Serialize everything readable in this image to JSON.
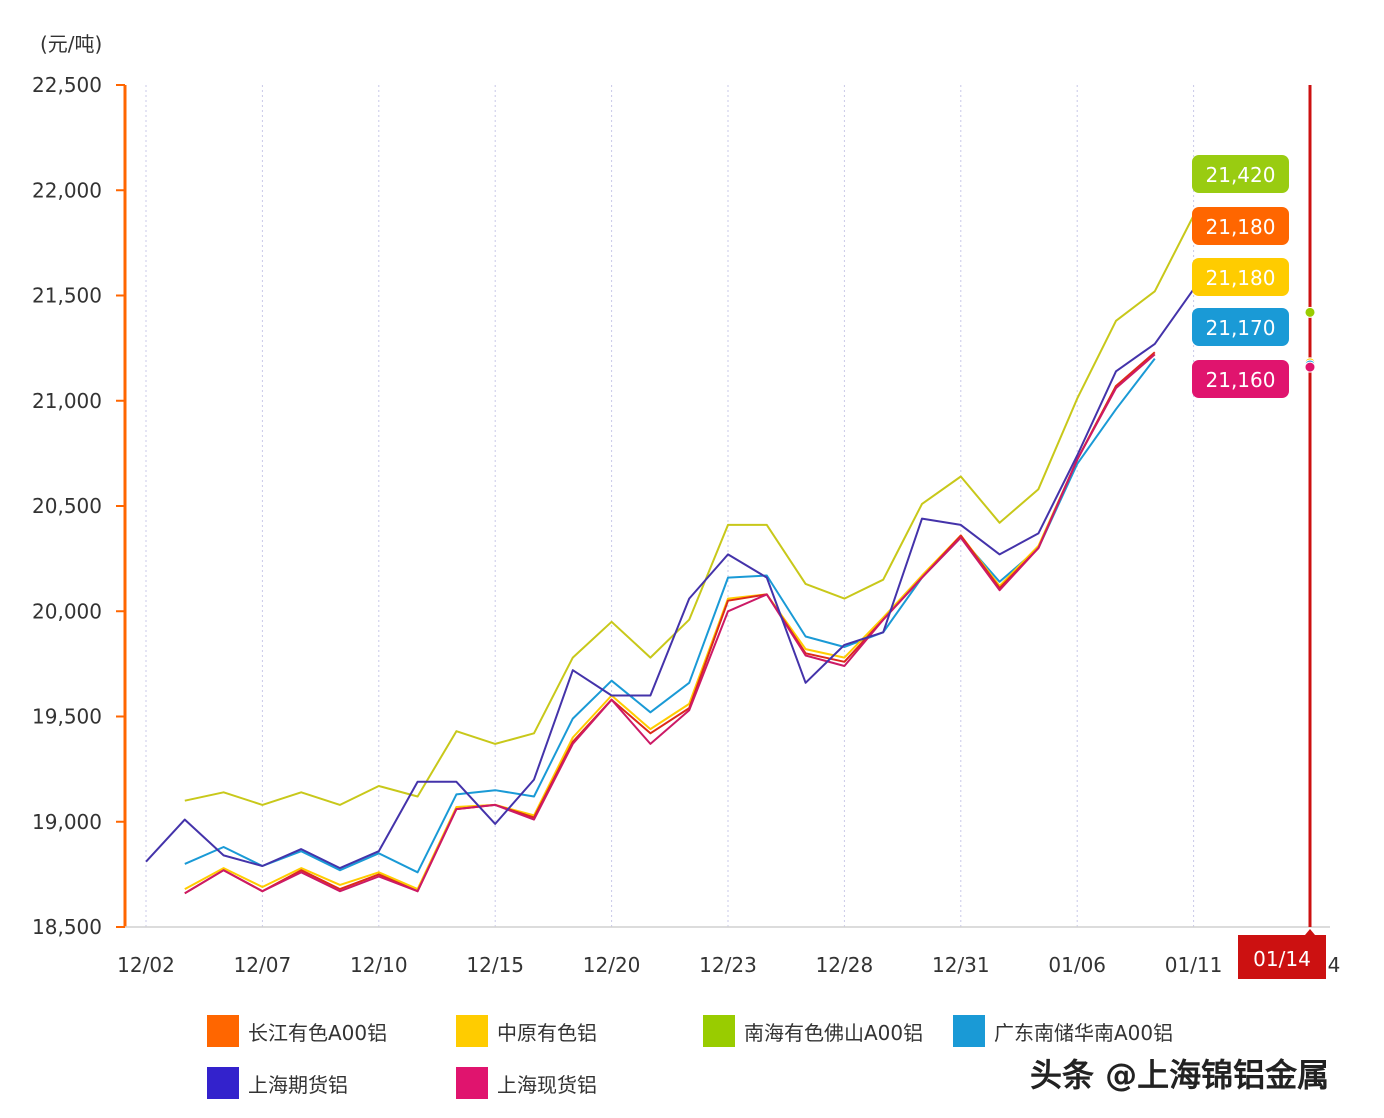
{
  "chart_data": {
    "type": "line",
    "unit_label": "(元/吨)",
    "xlabel": "",
    "ylabel": "",
    "ylim": [
      18500,
      22500
    ],
    "yticks": [
      18500,
      19000,
      19500,
      20000,
      20500,
      21000,
      21500,
      22000,
      22500
    ],
    "ytick_labels": [
      "18,500",
      "19,000",
      "19,500",
      "20,000",
      "20,500",
      "21,000",
      "21,500",
      "22,000",
      "22,500"
    ],
    "xtick_labels": [
      "12/02",
      "12/07",
      "12/10",
      "12/15",
      "12/20",
      "12/23",
      "12/28",
      "12/31",
      "01/06",
      "01/11"
    ],
    "xtick_index": [
      0,
      3,
      6,
      9,
      12,
      15,
      18,
      21,
      24,
      27
    ],
    "x": [
      "12/02",
      "12/03",
      "12/04",
      "12/07",
      "12/08",
      "12/09",
      "12/10",
      "12/11",
      "12/14",
      "12/15",
      "12/16",
      "12/17",
      "12/20",
      "12/21",
      "12/22",
      "12/23",
      "12/24",
      "12/25",
      "12/28",
      "12/29",
      "12/30",
      "12/31",
      "01/04",
      "01/05",
      "01/06",
      "01/07",
      "01/08",
      "01/11",
      "01/12",
      "01/13",
      "01/14"
    ],
    "series": [
      {
        "name": "长江有色A00铝",
        "color": "#ff6600",
        "values": [
          null,
          18660,
          18770,
          18670,
          18770,
          18680,
          18750,
          18670,
          19060,
          19080,
          19020,
          19380,
          19580,
          19420,
          19540,
          20050,
          20080,
          19800,
          19760,
          19960,
          20160,
          20360,
          20110,
          20300,
          20720,
          21070,
          21230,
          null,
          null,
          null,
          21180
        ]
      },
      {
        "name": "中原有色铝",
        "color": "#ffcc00",
        "values": [
          null,
          18680,
          18780,
          18690,
          18780,
          18700,
          18760,
          18680,
          19070,
          19080,
          19030,
          19400,
          19600,
          19440,
          19560,
          20060,
          20080,
          19820,
          19780,
          19970,
          20170,
          20360,
          20120,
          20310,
          20720,
          21070,
          21220,
          null,
          null,
          null,
          21180
        ]
      },
      {
        "name": "南海有色佛山A00铝",
        "color": "#99cc00",
        "values": [
          null,
          19100,
          19140,
          19080,
          19140,
          19080,
          19170,
          19120,
          19430,
          19370,
          19420,
          19780,
          19950,
          19780,
          19960,
          20410,
          20410,
          20130,
          20060,
          20150,
          20510,
          20640,
          20420,
          20580,
          21010,
          21380,
          21520,
          21880,
          null,
          null,
          21420
        ]
      },
      {
        "name": "广东南储华南A00铝",
        "color": "#1a9ad6",
        "values": [
          null,
          18800,
          18880,
          18790,
          18860,
          18770,
          18850,
          18760,
          19130,
          19150,
          19120,
          19490,
          19670,
          19520,
          19660,
          20160,
          20170,
          19880,
          19830,
          19900,
          20160,
          20350,
          20140,
          20300,
          20700,
          20960,
          21200,
          null,
          null,
          null,
          21170
        ]
      },
      {
        "name": "上海期货铝",
        "color": "#3322cc",
        "values": [
          18810,
          19010,
          18840,
          18790,
          18870,
          18780,
          18860,
          19190,
          19190,
          18990,
          19200,
          19720,
          19600,
          19600,
          20060,
          20270,
          20160,
          19660,
          19840,
          19900,
          20440,
          20410,
          20270,
          20370,
          20740,
          21140,
          21270,
          21530,
          null,
          null,
          null
        ]
      },
      {
        "name": "上海现货铝",
        "color": "#e0146e",
        "values": [
          null,
          18660,
          18770,
          18670,
          18760,
          18670,
          18740,
          18670,
          19060,
          19080,
          19010,
          19370,
          19580,
          19370,
          19530,
          20000,
          20080,
          19790,
          19740,
          19960,
          20160,
          20350,
          20100,
          20300,
          20720,
          21060,
          21220,
          null,
          null,
          null,
          21160
        ]
      }
    ],
    "series_line_colors": [
      "#dd2a1a",
      "#ffcc00",
      "#c8c81a",
      "#1a9ad6",
      "#4433aa",
      "#cc1a66"
    ],
    "end_labels": [
      {
        "text": "21,420",
        "color": "#99cc11"
      },
      {
        "text": "21,180",
        "color": "#ff6600"
      },
      {
        "text": "21,180",
        "color": "#ffcc00"
      },
      {
        "text": "21,170",
        "color": "#1a9ad6"
      },
      {
        "text": "21,160",
        "color": "#e0146e"
      }
    ],
    "crosshair_label": "01/14",
    "crosshair_extra_tick": "4",
    "crosshair_color": "#cc1111",
    "axis_color": "#ff6600",
    "grid": true,
    "legend_position": "bottom"
  },
  "watermark": "头条 @上海锦铝金属"
}
